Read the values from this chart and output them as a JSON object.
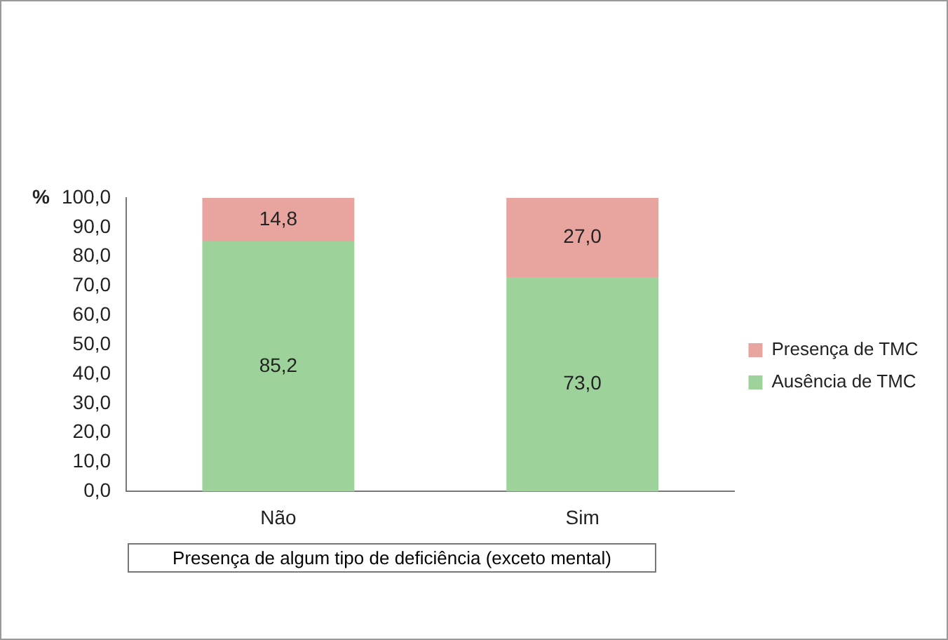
{
  "chart_data": {
    "type": "bar",
    "stacked": true,
    "categories": [
      "Não",
      "Sim"
    ],
    "series": [
      {
        "name": "Ausência de TMC",
        "color": "#9dd39a",
        "values": [
          85.2,
          73.0
        ],
        "value_labels": [
          "85,2",
          "73,0"
        ]
      },
      {
        "name": "Presença de TMC",
        "color": "#e8a5a0",
        "values": [
          14.8,
          27.0
        ],
        "value_labels": [
          "14,8",
          "27,0"
        ]
      }
    ],
    "ylabel": "%",
    "xlabel": "Presença de algum tipo de deficiência (exceto mental)",
    "ylim": [
      0,
      100
    ],
    "yticks": [
      {
        "value": 0,
        "label": "0,0"
      },
      {
        "value": 10,
        "label": "10,0"
      },
      {
        "value": 20,
        "label": "20,0"
      },
      {
        "value": 30,
        "label": "30,0"
      },
      {
        "value": 40,
        "label": "40,0"
      },
      {
        "value": 50,
        "label": "50,0"
      },
      {
        "value": 60,
        "label": "60,0"
      },
      {
        "value": 70,
        "label": "70,0"
      },
      {
        "value": 80,
        "label": "80,0"
      },
      {
        "value": 90,
        "label": "90,0"
      },
      {
        "value": 100,
        "label": "100,0"
      }
    ],
    "grid": false,
    "legend": "right"
  }
}
